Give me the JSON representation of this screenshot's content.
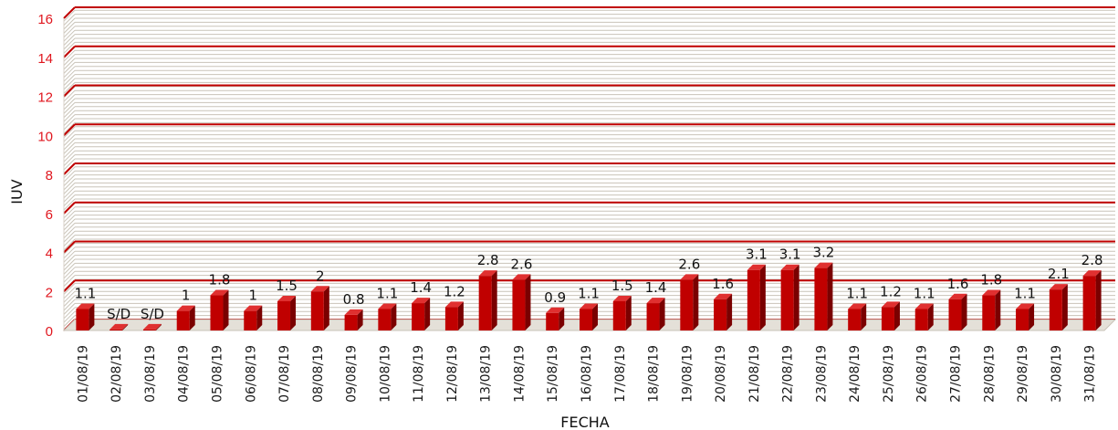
{
  "chart_data": {
    "type": "bar",
    "title": "",
    "xlabel": "FECHA",
    "ylabel": "IUV",
    "ylim": [
      0,
      16
    ],
    "yticks": [
      0,
      2,
      4,
      6,
      8,
      10,
      12,
      14,
      16
    ],
    "grid": true,
    "legend": "none",
    "bar_color": "#c00000",
    "categories": [
      "01/08/19",
      "02/08/19",
      "03/08/19",
      "04/08/19",
      "05/08/19",
      "06/08/19",
      "07/08/19",
      "08/08/19",
      "09/08/19",
      "10/08/19",
      "11/08/19",
      "12/08/19",
      "13/08/19",
      "14/08/19",
      "15/08/19",
      "16/08/19",
      "17/08/19",
      "18/08/19",
      "19/08/19",
      "20/08/19",
      "21/08/19",
      "22/08/19",
      "23/08/19",
      "24/08/19",
      "25/08/19",
      "26/08/19",
      "27/08/19",
      "28/08/19",
      "29/08/19",
      "30/08/19",
      "31/08/19"
    ],
    "values": [
      1.1,
      null,
      null,
      1,
      1.8,
      1,
      1.5,
      2,
      0.8,
      1.1,
      1.4,
      1.2,
      2.8,
      2.6,
      0.9,
      1.1,
      1.5,
      1.4,
      2.6,
      1.6,
      3.1,
      3.1,
      3.2,
      1.1,
      1.2,
      1.1,
      1.6,
      1.8,
      1.1,
      2.1,
      2.8
    ],
    "data_labels": [
      "1.1",
      "S/D",
      "S/D",
      "1",
      "1.8",
      "1",
      "1.5",
      "2",
      "0.8",
      "1.1",
      "1.4",
      "1.2",
      "2.8",
      "2.6",
      "0.9",
      "1.1",
      "1.5",
      "1.4",
      "2.6",
      "1.6",
      "3.1",
      "3.1",
      "3.2",
      "1.1",
      "1.2",
      "1.1",
      "1.6",
      "1.8",
      "1.1",
      "2.1",
      "2.8"
    ]
  }
}
